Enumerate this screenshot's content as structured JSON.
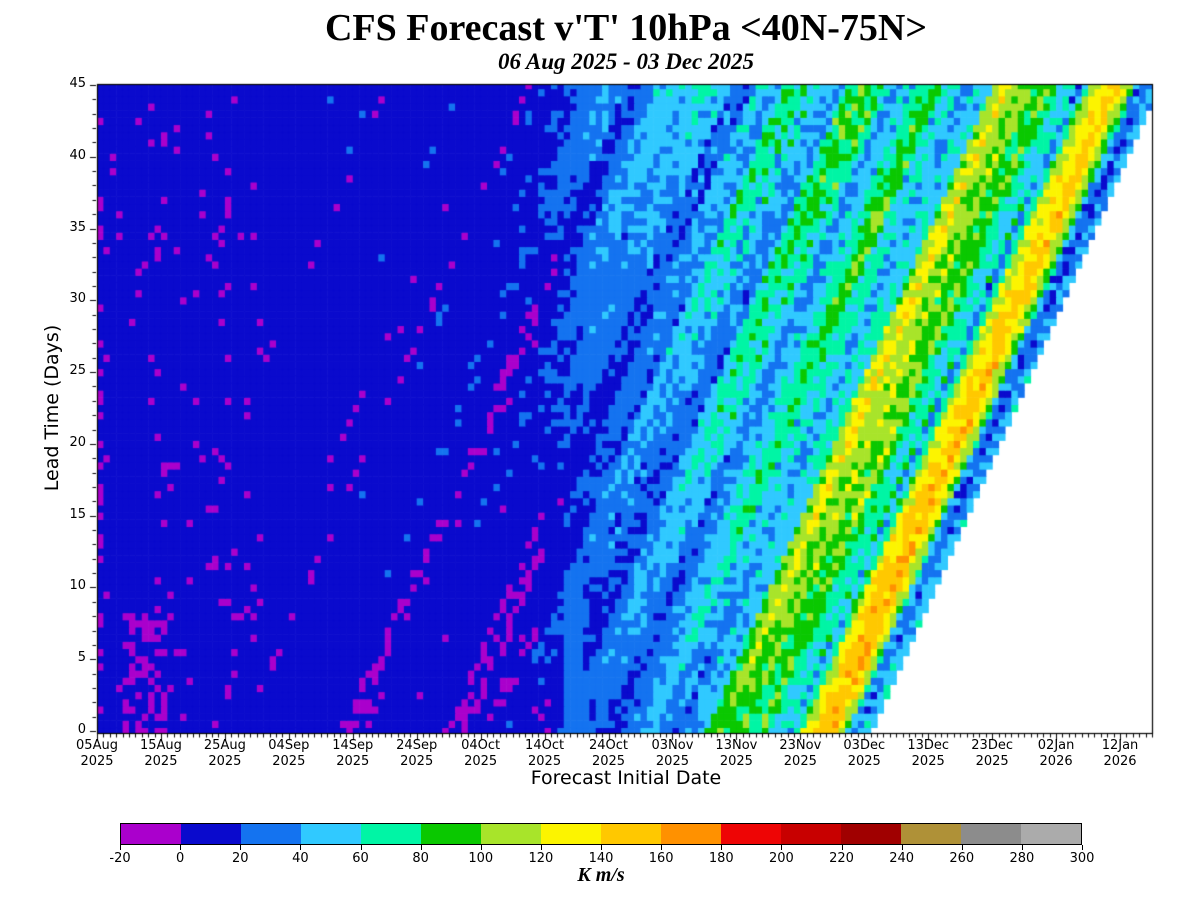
{
  "chart": {
    "title": "CFS Forecast v'T' 10hPa <40N-75N>",
    "subtitle": "06 Aug 2025 - 03 Dec 2025",
    "xlabel": "Forecast Initial Date",
    "ylabel": "Lead Time (Days)",
    "colorbar_label": "K m/s"
  },
  "chart_data": {
    "type": "heatmap",
    "title": "CFS Forecast v'T' 10hPa <40N-75N>",
    "subtitle": "06 Aug 2025 - 03 Dec 2025",
    "xlabel": "Forecast Initial Date",
    "ylabel": "Lead Time (Days)",
    "units": "K m/s",
    "x_tick_labels": [
      [
        "05Aug",
        "2025"
      ],
      [
        "15Aug",
        "2025"
      ],
      [
        "25Aug",
        "2025"
      ],
      [
        "04Sep",
        "2025"
      ],
      [
        "14Sep",
        "2025"
      ],
      [
        "24Sep",
        "2025"
      ],
      [
        "04Oct",
        "2025"
      ],
      [
        "14Oct",
        "2025"
      ],
      [
        "24Oct",
        "2025"
      ],
      [
        "03Nov",
        "2025"
      ],
      [
        "13Nov",
        "2025"
      ],
      [
        "23Nov",
        "2025"
      ],
      [
        "03Dec",
        "2025"
      ],
      [
        "13Dec",
        "2025"
      ],
      [
        "23Dec",
        "2025"
      ],
      [
        "02Jan",
        "2026"
      ],
      [
        "12Jan",
        "2026"
      ]
    ],
    "y_ticks": [
      0,
      5,
      10,
      15,
      20,
      25,
      30,
      35,
      40,
      45
    ],
    "lead_range": [
      0,
      45
    ],
    "colorbar": {
      "ticks": [
        -20,
        0,
        20,
        40,
        60,
        80,
        100,
        120,
        140,
        160,
        180,
        200,
        220,
        240,
        260,
        280,
        300
      ],
      "colors": [
        "#aa00cc",
        "#0a0acd",
        "#1473f0",
        "#30c9ff",
        "#00f5a5",
        "#0ac800",
        "#a8e42a",
        "#fcf400",
        "#ffc800",
        "#ff9100",
        "#ee0505",
        "#c80000",
        "#a00000",
        "#af9137",
        "#8c8c8c",
        "#ababab"
      ],
      "units": "K m/s"
    },
    "no_data_rule": "blank (white) where x-date minus lead exceeds 03 Dec 2025 (last initial date)",
    "sampled_leads": [
      0,
      5,
      10,
      15,
      20,
      25,
      30,
      35,
      40,
      45
    ],
    "sampled_dates": [
      "05 Aug 2025",
      "15 Aug 2025",
      "25 Aug 2025",
      "04 Sep 2025",
      "14 Sep 2025",
      "24 Sep 2025",
      "04 Oct 2025",
      "14 Oct 2025",
      "24 Oct 2025",
      "03 Nov 2025",
      "13 Nov 2025",
      "23 Nov 2025",
      "03 Dec 2025",
      "13 Dec 2025",
      "23 Dec 2025",
      "02 Jan 2026",
      "12 Jan 2026"
    ],
    "sampled_values_K_m_s": [
      [
        10,
        -5,
        10,
        10,
        10,
        10,
        10,
        15,
        30,
        50,
        75,
        110,
        90,
        null,
        null,
        null,
        null
      ],
      [
        10,
        10,
        10,
        10,
        10,
        10,
        15,
        25,
        35,
        55,
        75,
        130,
        95,
        null,
        null,
        null,
        null
      ],
      [
        10,
        10,
        15,
        10,
        10,
        10,
        15,
        25,
        40,
        55,
        70,
        100,
        120,
        60,
        null,
        null,
        null
      ],
      [
        10,
        10,
        10,
        10,
        10,
        10,
        20,
        30,
        40,
        60,
        80,
        110,
        100,
        80,
        null,
        null,
        null
      ],
      [
        10,
        15,
        10,
        10,
        10,
        15,
        20,
        30,
        45,
        60,
        90,
        120,
        110,
        90,
        160,
        null,
        null
      ],
      [
        10,
        10,
        15,
        10,
        10,
        15,
        25,
        35,
        45,
        65,
        80,
        100,
        90,
        100,
        120,
        null,
        null
      ],
      [
        10,
        15,
        10,
        10,
        15,
        20,
        25,
        35,
        50,
        70,
        90,
        80,
        100,
        90,
        110,
        60,
        null
      ],
      [
        10,
        10,
        10,
        15,
        20,
        25,
        30,
        40,
        50,
        60,
        80,
        90,
        100,
        80,
        90,
        70,
        null
      ],
      [
        15,
        10,
        15,
        20,
        20,
        25,
        30,
        40,
        55,
        70,
        60,
        90,
        80,
        90,
        100,
        80,
        50
      ],
      [
        10,
        15,
        20,
        25,
        25,
        30,
        35,
        45,
        55,
        65,
        70,
        80,
        90,
        70,
        80,
        60,
        50
      ]
    ],
    "render_model": {
      "days_total": 165,
      "init_last_day": 120,
      "lead_max": 45,
      "lead_step": 0.5,
      "background": [
        [
          0,
          8
        ],
        [
          68,
          8
        ],
        [
          76,
          24
        ],
        [
          88,
          38
        ],
        [
          100,
          55
        ],
        [
          112,
          66
        ],
        [
          120,
          72
        ],
        [
          135,
          62
        ],
        [
          165,
          56
        ]
      ],
      "streak_amp": [
        [
          0,
          5
        ],
        [
          70,
          8
        ],
        [
          88,
          16
        ],
        [
          100,
          26
        ],
        [
          120,
          34
        ],
        [
          165,
          36
        ]
      ],
      "noise_amp": [
        [
          0,
          3
        ],
        [
          80,
          8
        ],
        [
          100,
          13
        ],
        [
          165,
          15
        ]
      ],
      "lead_bias": 0.08,
      "events": [
        {
          "t": 113,
          "width": 3.5,
          "amp": 85
        },
        {
          "t": 118.5,
          "width": 1.2,
          "amp": -55
        },
        {
          "t": 98,
          "width": 4,
          "amp": 30
        }
      ],
      "event_gain": [
        [
          0,
          0.3
        ],
        [
          80,
          0.4
        ],
        [
          105,
          1.0
        ],
        [
          165,
          1.0
        ]
      ],
      "blue_column": {
        "d0": 73,
        "d1": 75,
        "lead_max": 11,
        "value": 27
      },
      "magenta": {
        "d_max": 26,
        "t_max": 18,
        "base_prob": 0.05,
        "first_col_prob": 0.3,
        "blob": {
          "d0": 4,
          "d1": 10,
          "lead_max": 8,
          "prob": 0.45
        },
        "value": -6
      }
    }
  }
}
